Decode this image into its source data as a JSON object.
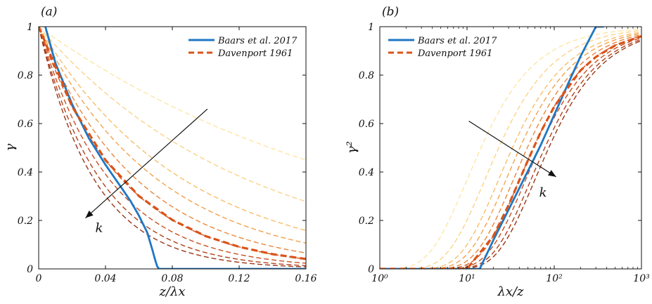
{
  "chart_data": [
    {
      "type": "line",
      "panel_label": "(a)",
      "xlabel": "z/λx",
      "ylabel": "γ",
      "xlim": [
        0,
        0.16
      ],
      "ylim": [
        0,
        1
      ],
      "xscale": "linear",
      "xticks": [
        "0",
        "0.04",
        "0.08",
        "0.12",
        "0.16"
      ],
      "yticks": [
        "0",
        "0.2",
        "0.4",
        "0.6",
        "0.8",
        "1"
      ],
      "annotation": {
        "text": "k",
        "arrow_from": [
          0.101,
          0.66
        ],
        "arrow_to": [
          0.028,
          0.21
        ]
      },
      "legend_position": "top-right",
      "legend": [
        "Baars et al. 2017",
        "Davenport 1961"
      ],
      "colors": {
        "baars": "#1f77c4",
        "davenport": "#d95319"
      },
      "family_curves": {
        "model": "exp(-k x)",
        "k": [
          5,
          8,
          11.5,
          14,
          17,
          20,
          23.5,
          27,
          30
        ],
        "colors": [
          "#fde6a6",
          "#fbd389",
          "#f8be6a",
          "#f1a24d",
          "#e9863b",
          "#d95319",
          "#c84f22",
          "#b0411a",
          "#9a3515"
        ]
      },
      "series": [
        {
          "name": "Baars et al. 2017",
          "x": [
            0.004,
            0.01,
            0.02,
            0.03,
            0.04,
            0.05,
            0.055,
            0.06,
            0.065,
            0.068,
            0.07,
            0.071,
            0.072,
            0.08,
            0.12,
            0.16
          ],
          "y": [
            1.0,
            0.85,
            0.68,
            0.54,
            0.43,
            0.33,
            0.28,
            0.22,
            0.15,
            0.08,
            0.03,
            0.01,
            0.0,
            0.0,
            0.0,
            0.0
          ]
        },
        {
          "name": "Davenport 1961",
          "x": [
            0,
            0.02,
            0.04,
            0.06,
            0.08,
            0.1,
            0.12,
            0.14,
            0.16
          ],
          "y": [
            1.0,
            0.67,
            0.449,
            0.301,
            0.202,
            0.135,
            0.091,
            0.061,
            0.041
          ]
        }
      ]
    },
    {
      "type": "line",
      "panel_label": "(b)",
      "xlabel": "λx/z",
      "ylabel": "γ²",
      "xlim": [
        1,
        1000
      ],
      "ylim": [
        0,
        1
      ],
      "xscale": "log",
      "xticks": [
        "10⁰",
        "10¹",
        "10²",
        "10³"
      ],
      "yticks": [
        "0",
        "0.2",
        "0.4",
        "0.6",
        "0.8",
        "1"
      ],
      "annotation": {
        "text": "k",
        "arrow_from": [
          10.5,
          0.61
        ],
        "arrow_to": [
          105,
          0.38
        ]
      },
      "legend_position": "top-left",
      "legend": [
        "Baars et al. 2017",
        "Davenport 1961"
      ],
      "colors": {
        "baars": "#1f77c4",
        "davenport": "#d95319"
      },
      "family_curves": {
        "model": "exp(-2k/x)",
        "k": [
          5,
          8,
          11.5,
          14,
          17,
          20,
          23.5,
          27,
          30
        ],
        "colors": [
          "#fde6a6",
          "#fbd389",
          "#f8be6a",
          "#f1a24d",
          "#e9863b",
          "#d95319",
          "#c84f22",
          "#b0411a",
          "#9a3515"
        ]
      },
      "series": [
        {
          "name": "Baars et al. 2017",
          "x": [
            1,
            14.0,
            20,
            30,
            50,
            70,
            100,
            150,
            200,
            300,
            370
          ],
          "y": [
            0.0,
            0.0,
            0.118,
            0.245,
            0.405,
            0.511,
            0.636,
            0.778,
            0.877,
            1.0,
            1.0
          ]
        },
        {
          "name": "Davenport 1961",
          "x": [
            1,
            5,
            10,
            20,
            30,
            50,
            70,
            100,
            200,
            300,
            500,
            1000
          ],
          "y": [
            0.0,
            0.0,
            0.0,
            0.135,
            0.264,
            0.449,
            0.565,
            0.67,
            0.819,
            0.875,
            0.923,
            0.961
          ]
        }
      ]
    }
  ]
}
